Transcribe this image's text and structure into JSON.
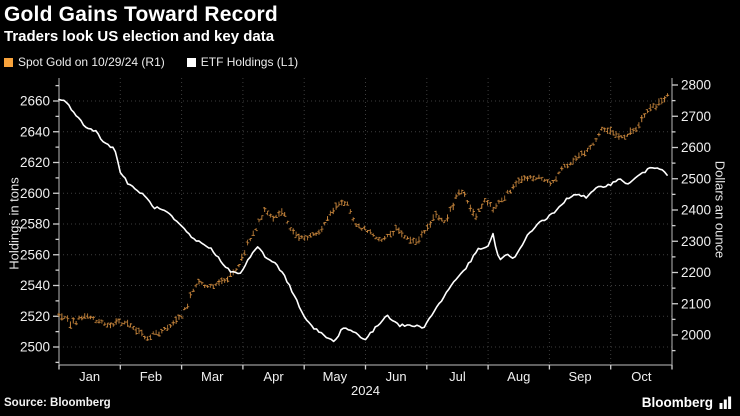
{
  "header": {
    "title": "Gold Gains Toward Record",
    "subtitle": "Traders look US election and key data"
  },
  "legend": [
    {
      "label": "Spot Gold on 10/29/24 (R1)",
      "swatch_color": "#F8A33C"
    },
    {
      "label": "ETF Holdings (L1)",
      "swatch_color": "#FFFFFF"
    }
  ],
  "footer": {
    "source": "Source: Bloomberg",
    "brand": "Bloomberg"
  },
  "chart_data": {
    "type": "line",
    "x_unit": "months since Jan 1 2024 (0 = Jan 1, 9.93 = Oct 29)",
    "x_axis": {
      "months": [
        "Jan",
        "Feb",
        "Mar",
        "Apr",
        "May",
        "Jun",
        "Jul",
        "Aug",
        "Sep",
        "Oct"
      ],
      "year_label": "2024",
      "months_shown": 10
    },
    "left_axis": {
      "title": "Holdings in tons",
      "min": 2500,
      "max": 2660,
      "tick_step": 20,
      "minor_step": 10
    },
    "right_axis": {
      "title": "Dollars an ounce",
      "min": 2000,
      "max": 2800,
      "tick_step": 100,
      "minor_step": 50
    },
    "grid": {
      "horizontal": true,
      "vertical": true,
      "style": "dotted"
    },
    "series": [
      {
        "name": "Spot Gold on 10/29/24 (R1)",
        "axis": "right",
        "style": "ohlc-bars",
        "color": "#CE8A3E",
        "anchors": [
          [
            0,
            2063
          ],
          [
            0.2,
            2038
          ],
          [
            0.45,
            2062
          ],
          [
            0.55,
            2050
          ],
          [
            0.8,
            2030
          ],
          [
            1.0,
            2042
          ],
          [
            1.2,
            2025
          ],
          [
            1.45,
            1992
          ],
          [
            1.65,
            2012
          ],
          [
            1.85,
            2035
          ],
          [
            2.0,
            2055
          ],
          [
            2.25,
            2170
          ],
          [
            2.45,
            2155
          ],
          [
            2.7,
            2175
          ],
          [
            2.9,
            2210
          ],
          [
            3.1,
            2300
          ],
          [
            3.35,
            2395
          ],
          [
            3.5,
            2370
          ],
          [
            3.65,
            2400
          ],
          [
            3.8,
            2330
          ],
          [
            4.0,
            2308
          ],
          [
            4.25,
            2335
          ],
          [
            4.55,
            2420
          ],
          [
            4.7,
            2425
          ],
          [
            4.85,
            2350
          ],
          [
            5.05,
            2335
          ],
          [
            5.25,
            2300
          ],
          [
            5.5,
            2335
          ],
          [
            5.7,
            2310
          ],
          [
            5.85,
            2300
          ],
          [
            6.0,
            2340
          ],
          [
            6.15,
            2385
          ],
          [
            6.3,
            2365
          ],
          [
            6.55,
            2470
          ],
          [
            6.8,
            2375
          ],
          [
            6.95,
            2435
          ],
          [
            7.1,
            2405
          ],
          [
            7.35,
            2460
          ],
          [
            7.6,
            2505
          ],
          [
            7.85,
            2498
          ],
          [
            8.05,
            2490
          ],
          [
            8.25,
            2540
          ],
          [
            8.45,
            2570
          ],
          [
            8.65,
            2595
          ],
          [
            8.85,
            2660
          ],
          [
            9.0,
            2655
          ],
          [
            9.2,
            2625
          ],
          [
            9.4,
            2655
          ],
          [
            9.6,
            2720
          ],
          [
            9.75,
            2740
          ],
          [
            9.87,
            2745
          ],
          [
            9.93,
            2768
          ]
        ]
      },
      {
        "name": "ETF Holdings (L1)",
        "axis": "left",
        "style": "line",
        "color": "#FFFFFF",
        "anchors": [
          [
            0,
            2661
          ],
          [
            0.12,
            2659
          ],
          [
            0.3,
            2650
          ],
          [
            0.45,
            2642
          ],
          [
            0.6,
            2641
          ],
          [
            0.75,
            2632
          ],
          [
            0.9,
            2630
          ],
          [
            1.0,
            2614
          ],
          [
            1.15,
            2605
          ],
          [
            1.35,
            2600
          ],
          [
            1.55,
            2591
          ],
          [
            1.75,
            2588
          ],
          [
            2.0,
            2578
          ],
          [
            2.2,
            2570
          ],
          [
            2.45,
            2565
          ],
          [
            2.6,
            2558
          ],
          [
            2.8,
            2549
          ],
          [
            2.95,
            2547
          ],
          [
            3.1,
            2558
          ],
          [
            3.25,
            2565
          ],
          [
            3.4,
            2557
          ],
          [
            3.55,
            2554
          ],
          [
            3.75,
            2541
          ],
          [
            3.95,
            2524
          ],
          [
            4.1,
            2514
          ],
          [
            4.3,
            2508
          ],
          [
            4.5,
            2503
          ],
          [
            4.62,
            2513
          ],
          [
            4.8,
            2510
          ],
          [
            5.0,
            2505
          ],
          [
            5.2,
            2514
          ],
          [
            5.35,
            2521
          ],
          [
            5.55,
            2514
          ],
          [
            5.75,
            2514
          ],
          [
            5.95,
            2513
          ],
          [
            6.2,
            2528
          ],
          [
            6.45,
            2543
          ],
          [
            6.65,
            2552
          ],
          [
            6.85,
            2564
          ],
          [
            7.0,
            2565
          ],
          [
            7.08,
            2573
          ],
          [
            7.18,
            2556
          ],
          [
            7.3,
            2560
          ],
          [
            7.42,
            2557
          ],
          [
            7.6,
            2570
          ],
          [
            7.8,
            2580
          ],
          [
            8.0,
            2585
          ],
          [
            8.15,
            2590
          ],
          [
            8.3,
            2597
          ],
          [
            8.45,
            2600
          ],
          [
            8.6,
            2597
          ],
          [
            8.8,
            2604
          ],
          [
            9.0,
            2606
          ],
          [
            9.15,
            2609
          ],
          [
            9.3,
            2606
          ],
          [
            9.5,
            2613
          ],
          [
            9.7,
            2617
          ],
          [
            9.85,
            2616
          ],
          [
            9.93,
            2612
          ]
        ]
      }
    ]
  }
}
